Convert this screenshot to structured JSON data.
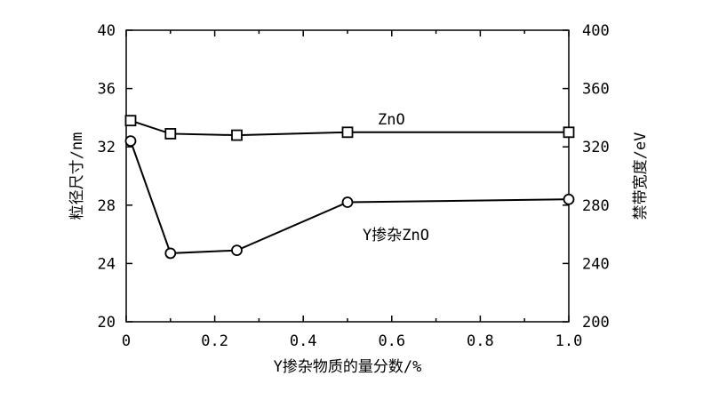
{
  "chart_data": {
    "type": "line",
    "xlabel": "Y掺杂物质的量分数/%",
    "ylabel_left": "粒径尺寸/nm",
    "ylabel_right": "禁带宽度/eV",
    "xlim": [
      0,
      1.0
    ],
    "ylim_left": [
      20,
      40
    ],
    "ylim_right": [
      200,
      400
    ],
    "x_ticks": [
      "0",
      "0.2",
      "0.4",
      "0.6",
      "0.8",
      "1.0"
    ],
    "x_tick_values": [
      0,
      0.2,
      0.4,
      0.6,
      0.8,
      1.0
    ],
    "y_left_ticks": [
      "20",
      "24",
      "28",
      "32",
      "36",
      "40"
    ],
    "y_left_tick_values": [
      20,
      24,
      28,
      32,
      36,
      40
    ],
    "y_right_ticks": [
      "200",
      "240",
      "280",
      "320",
      "360",
      "400"
    ],
    "y_right_tick_values": [
      200,
      240,
      280,
      320,
      360,
      400
    ],
    "grid": false,
    "series": [
      {
        "name": "ZnO",
        "marker": "square",
        "x": [
          0.01,
          0.1,
          0.25,
          0.5,
          1.0
        ],
        "y": [
          33.8,
          32.9,
          32.8,
          33.0,
          33.0
        ]
      },
      {
        "name": "Y掺杂ZnO",
        "marker": "circle",
        "x": [
          0.01,
          0.1,
          0.25,
          0.5,
          1.0
        ],
        "y": [
          32.4,
          24.7,
          24.9,
          28.2,
          28.4
        ]
      }
    ]
  }
}
